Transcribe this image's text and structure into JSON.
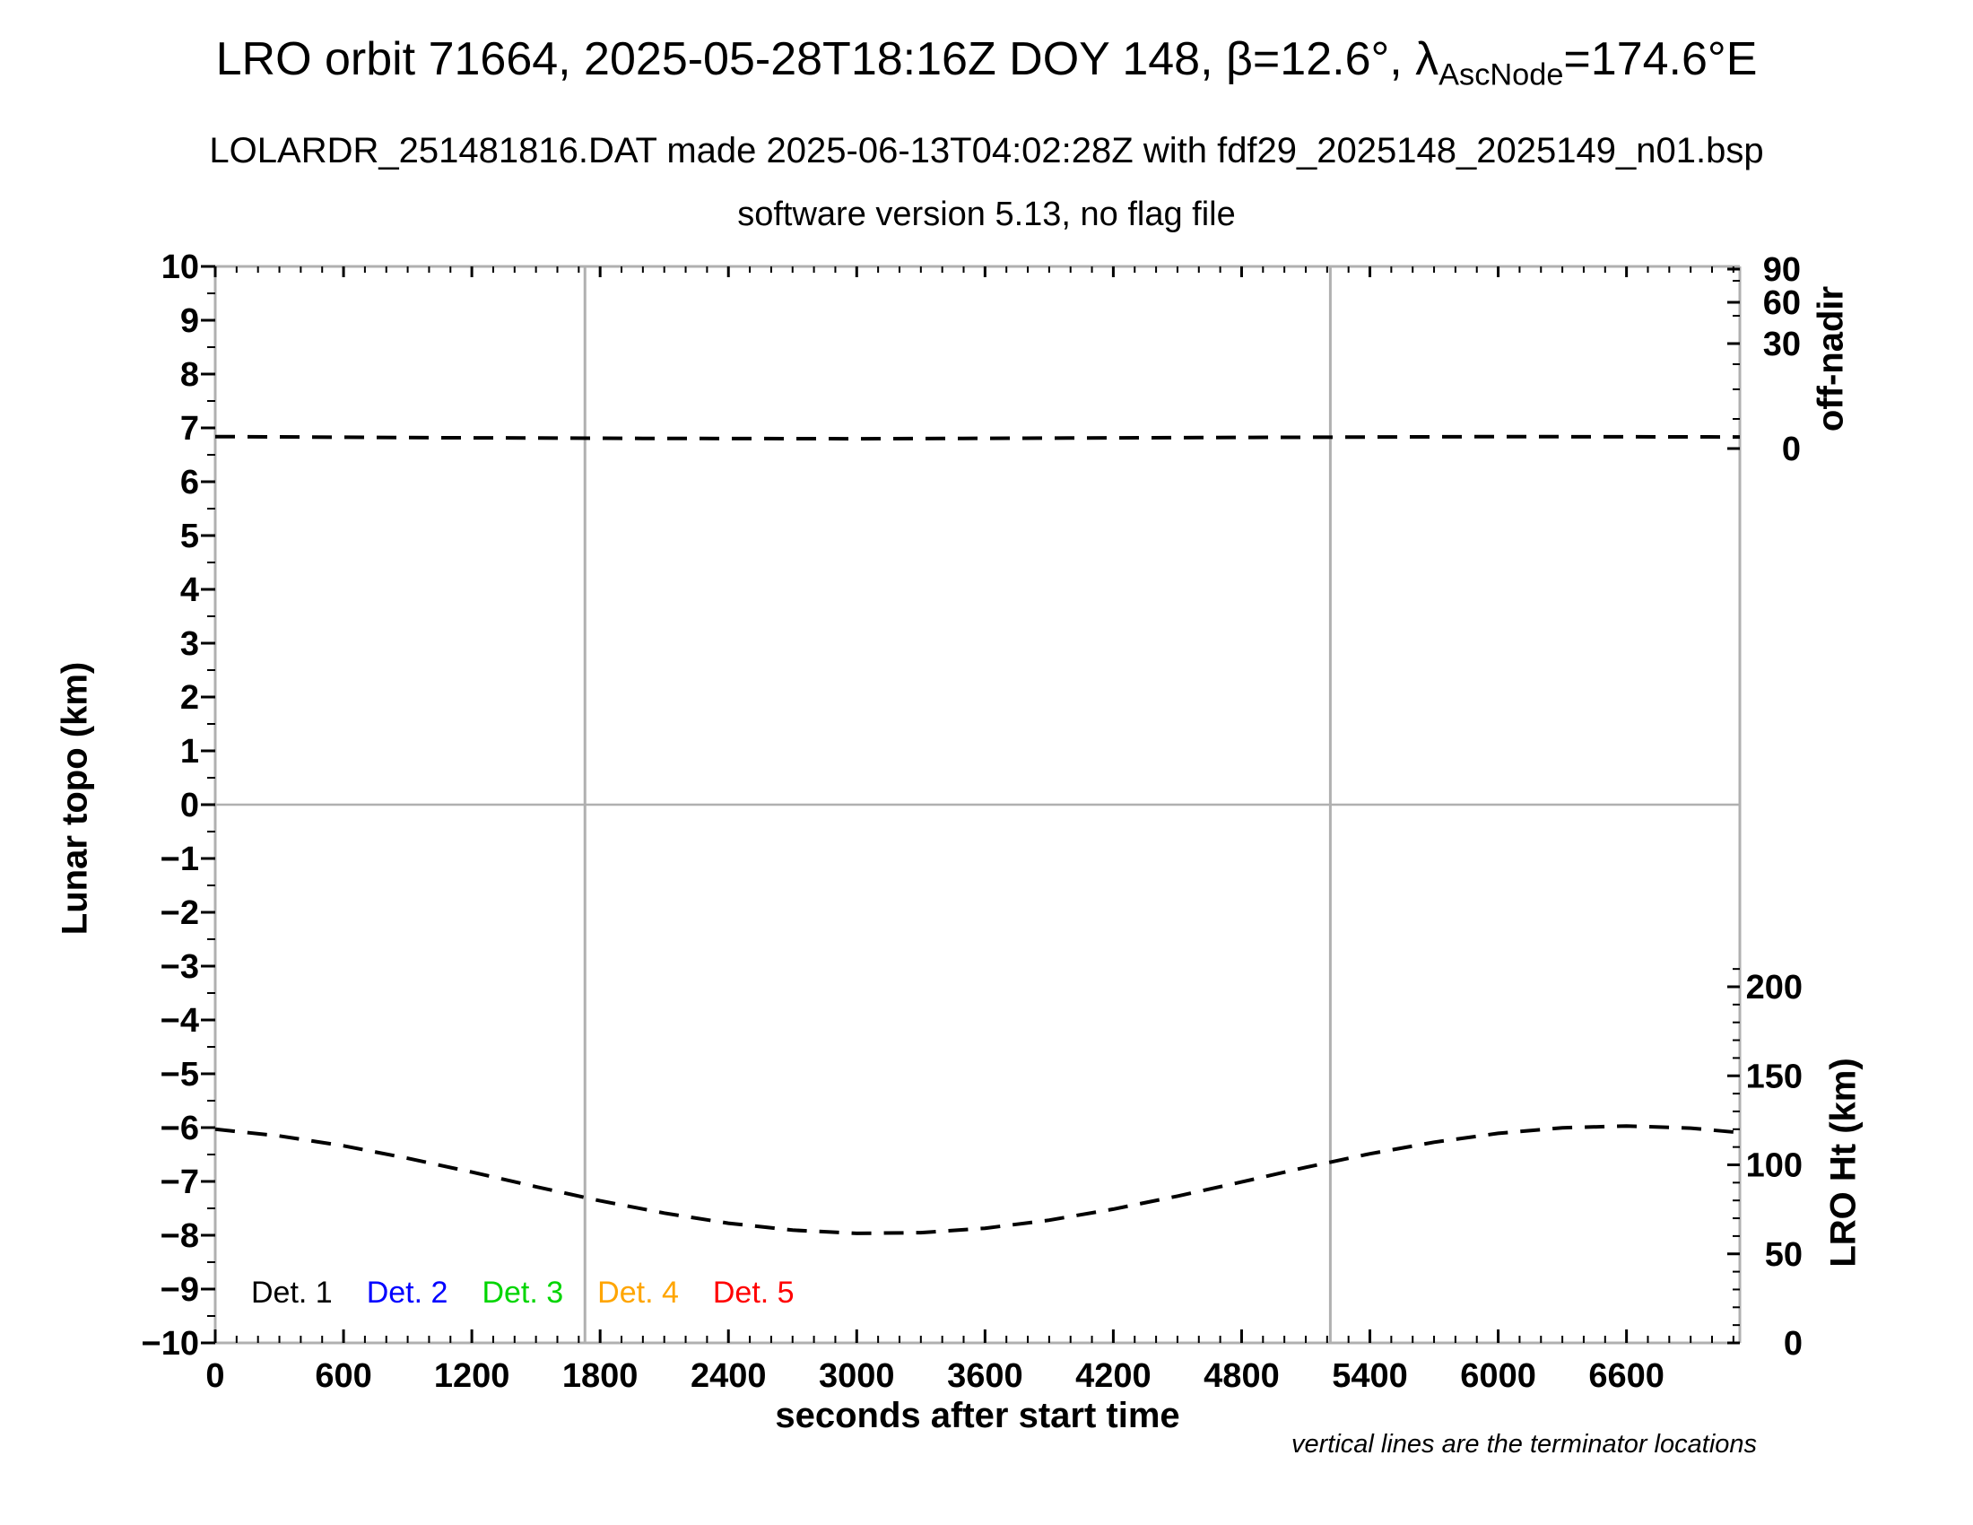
{
  "header": {
    "title_pre": "LRO orbit 71664, 2025-05-28T18:16Z DOY 148, β=12.6°, λ",
    "title_subscript": "AscNode",
    "title_post": "=174.6°E",
    "subtitle": "LOLARDR_251481816.DAT made 2025-06-13T04:02:28Z with fdf29_2025148_2025149_n01.bsp",
    "software_line": "software version 5.13, no flag file"
  },
  "axes": {
    "y_left_label": "Lunar topo (km)",
    "y_right_top_label": "off-nadir",
    "y_right_bottom_label": "LRO Ht (km)",
    "x_label": "seconds after start time"
  },
  "note": "vertical lines are the terminator locations",
  "legend": {
    "items": [
      {
        "label": "Det. 1",
        "color": "#000000"
      },
      {
        "label": "Det. 2",
        "color": "#0000ff"
      },
      {
        "label": "Det. 3",
        "color": "#00d500"
      },
      {
        "label": "Det. 4",
        "color": "#ffa500"
      },
      {
        "label": "Det. 5",
        "color": "#ff0000"
      }
    ]
  },
  "chart_data": {
    "type": "line",
    "title": "LRO orbit 71664, 2025-05-28T18:16Z DOY 148, beta=12.6 deg, lambda_AscNode=174.6 deg E",
    "xlabel": "seconds after start time",
    "x_range": [
      0,
      7130
    ],
    "x_major_ticks": [
      0,
      600,
      1200,
      1800,
      2400,
      3000,
      3600,
      4200,
      4800,
      5400,
      6000,
      6600
    ],
    "x_minor_step": 100,
    "y_left_label": "Lunar topo (km)",
    "y_left_range": [
      -10,
      10
    ],
    "y_left_major_step": 1,
    "y_left_minor_step": 0.5,
    "y_left_gridline_at": 0,
    "y_right_top_label": "off-nadir",
    "y_right_top_ticks": [
      90,
      60,
      30,
      0
    ],
    "y_right_bottom_label": "LRO Ht (km)",
    "y_right_bottom_ticks": [
      200,
      150,
      100,
      50,
      0
    ],
    "y_right_bottom_minor_step": 10,
    "terminator_lines_s": [
      1729,
      5215
    ],
    "frame_color": "#b0b0b0",
    "curve_color": "#000000",
    "legend_entries": [
      "Det. 1",
      "Det. 2",
      "Det. 3",
      "Det. 4",
      "Det. 5"
    ],
    "series": [
      {
        "name": "off-nadir angle",
        "axis": "right-top",
        "units": "deg",
        "style": "dashed",
        "x": [
          0,
          1000,
          2000,
          3000,
          3500,
          4000,
          5000,
          6000,
          7130
        ],
        "values": [
          3.4,
          3.1,
          2.9,
          2.8,
          2.9,
          3.0,
          3.2,
          3.4,
          3.3
        ]
      },
      {
        "name": "LRO height",
        "axis": "right-bottom",
        "units": "km",
        "style": "dashed",
        "x": [
          0,
          300,
          600,
          900,
          1200,
          1500,
          1800,
          2100,
          2400,
          2700,
          3000,
          3300,
          3600,
          3900,
          4200,
          4500,
          4800,
          5100,
          5400,
          5700,
          6000,
          6300,
          6600,
          6900,
          7130
        ],
        "values": [
          120.0,
          116.2,
          110.7,
          103.7,
          95.9,
          87.7,
          79.8,
          72.9,
          67.2,
          63.3,
          61.5,
          61.9,
          64.4,
          68.9,
          75.1,
          82.4,
          90.4,
          98.6,
          106.2,
          112.7,
          117.7,
          120.8,
          121.8,
          120.6,
          118.1
        ]
      }
    ],
    "detector_topo_series_plotted": "none"
  }
}
